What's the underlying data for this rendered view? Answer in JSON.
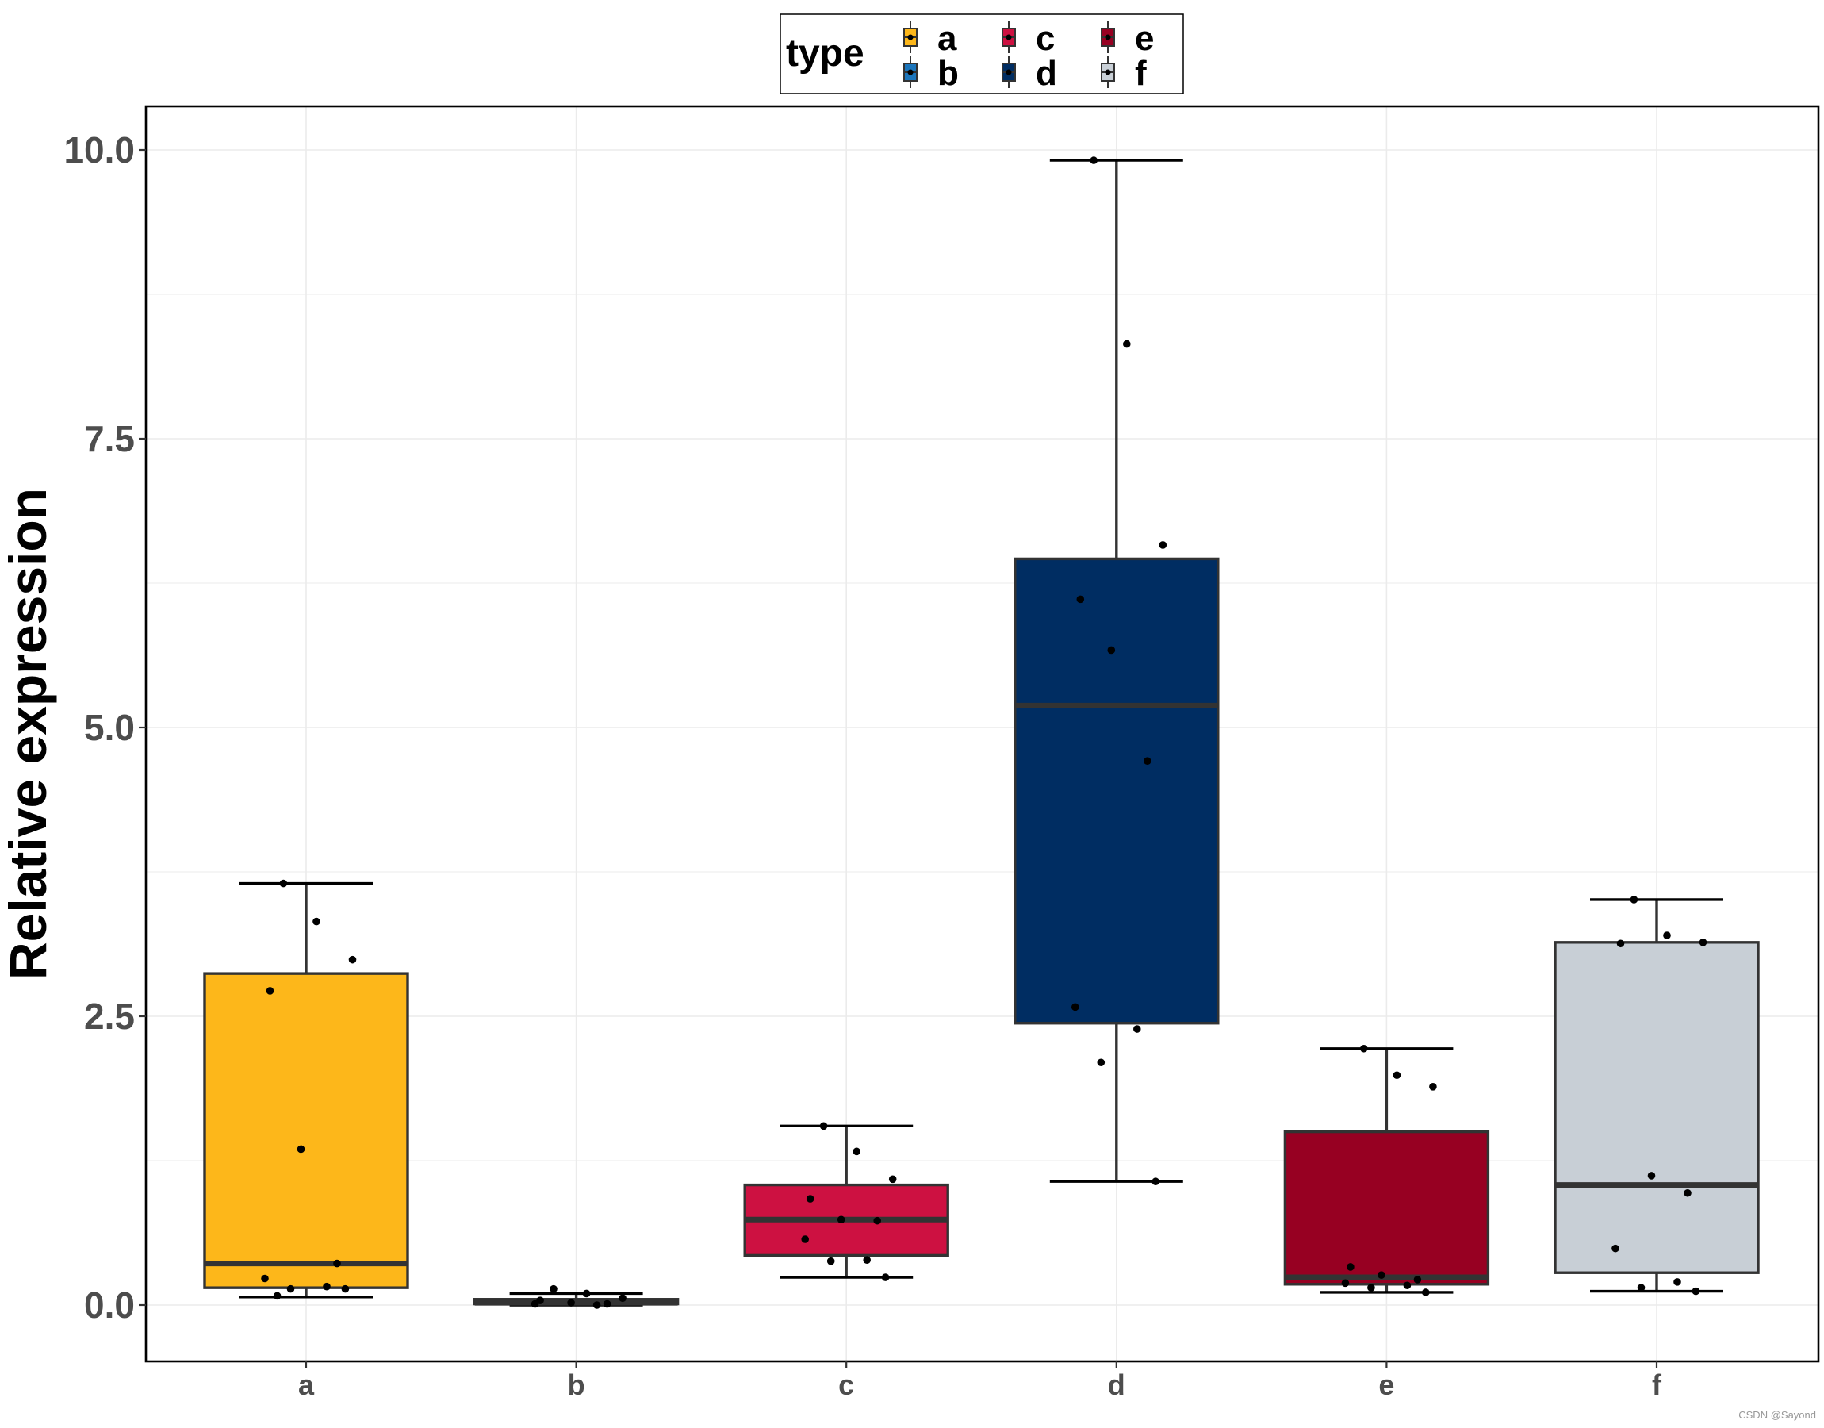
{
  "chart_data": {
    "type": "box",
    "title": "",
    "xlabel": "",
    "ylabel": "Relative expression",
    "ylim": [
      -0.5,
      10.4
    ],
    "yticks": [
      "0.0",
      "2.5",
      "5.0",
      "7.5",
      "10.0"
    ],
    "ytick_values": [
      0,
      2.5,
      5,
      7.5,
      10
    ],
    "grid": true,
    "legend": {
      "title": "type",
      "placement": "top",
      "entries": [
        "a",
        "b",
        "c",
        "d",
        "e",
        "f"
      ]
    },
    "categories": [
      "a",
      "b",
      "c",
      "d",
      "e",
      "f"
    ],
    "boxes": [
      {
        "name": "a",
        "color": "#FDB71A",
        "whisker_low": 0.07,
        "q1": 0.15,
        "median": 0.36,
        "q3": 2.87,
        "whisker_high": 3.65,
        "points": [
          3.65,
          3.32,
          2.99,
          2.72,
          1.35,
          0.36,
          0.23,
          0.16,
          0.14,
          0.14,
          0.08
        ]
      },
      {
        "name": "b",
        "color": "#1B75BB",
        "whisker_low": 0.0,
        "q1": 0.01,
        "median": 0.02,
        "q3": 0.05,
        "whisker_high": 0.1,
        "points": [
          0.14,
          0.1,
          0.06,
          0.04,
          0.02,
          0.01,
          0.01,
          0.0
        ]
      },
      {
        "name": "c",
        "color": "#CD1141",
        "whisker_low": 0.24,
        "q1": 0.43,
        "median": 0.74,
        "q3": 1.04,
        "whisker_high": 1.55,
        "points": [
          1.55,
          1.33,
          1.09,
          0.92,
          0.74,
          0.73,
          0.57,
          0.39,
          0.38,
          0.24
        ]
      },
      {
        "name": "d",
        "color": "#002D62",
        "whisker_low": 1.07,
        "q1": 2.44,
        "median": 5.19,
        "q3": 6.46,
        "whisker_high": 9.91,
        "points": [
          9.91,
          8.32,
          6.58,
          6.11,
          5.67,
          4.71,
          2.58,
          2.39,
          2.1,
          1.07
        ]
      },
      {
        "name": "e",
        "color": "#970022",
        "whisker_low": 0.11,
        "q1": 0.18,
        "median": 0.24,
        "q3": 1.5,
        "whisker_high": 2.22,
        "points": [
          2.22,
          1.99,
          1.89,
          0.33,
          0.26,
          0.22,
          0.19,
          0.17,
          0.15,
          0.11
        ]
      },
      {
        "name": "f",
        "color": "#C8CFD6",
        "whisker_low": 0.12,
        "q1": 0.28,
        "median": 1.04,
        "q3": 3.14,
        "whisker_high": 3.51,
        "points": [
          3.51,
          3.2,
          3.14,
          3.13,
          1.12,
          0.97,
          0.49,
          0.2,
          0.15,
          0.12
        ]
      }
    ]
  },
  "legend_title": "type",
  "watermark": "CSDN @Sayond"
}
